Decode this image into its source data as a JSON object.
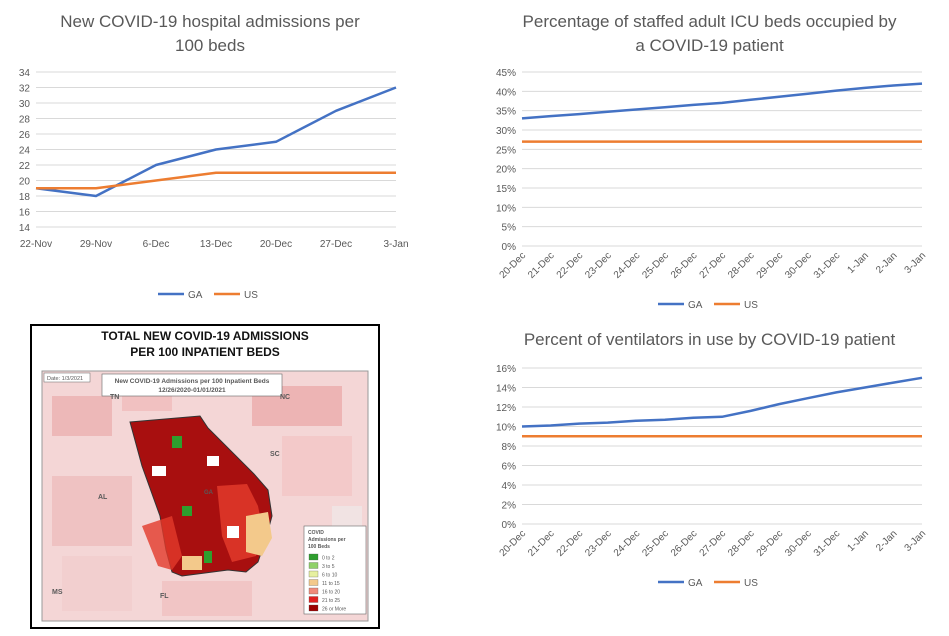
{
  "chart_data": [
    {
      "id": "admissions",
      "type": "line",
      "title_lines": [
        "New COVID-19 hospital admissions per",
        "100 beds"
      ],
      "categories": [
        "22-Nov",
        "29-Nov",
        "6-Dec",
        "13-Dec",
        "20-Dec",
        "27-Dec",
        "3-Jan"
      ],
      "series": [
        {
          "name": "GA",
          "color": "#4472C4",
          "values": [
            19,
            18,
            22,
            24,
            25,
            29,
            32
          ]
        },
        {
          "name": "US",
          "color": "#ED7D31",
          "values": [
            19,
            19,
            20,
            21,
            21,
            21,
            21
          ]
        }
      ],
      "yticks": [
        "14",
        "16",
        "18",
        "20",
        "22",
        "24",
        "26",
        "28",
        "30",
        "32",
        "34"
      ],
      "ylim": [
        14,
        34
      ],
      "grid": true,
      "legend": "bottom"
    },
    {
      "id": "icu",
      "type": "line",
      "title_lines": [
        "Percentage of staffed adult ICU beds occupied by",
        "a COVID-19 patient"
      ],
      "categories": [
        "20-Dec",
        "21-Dec",
        "22-Dec",
        "23-Dec",
        "24-Dec",
        "25-Dec",
        "26-Dec",
        "27-Dec",
        "28-Dec",
        "29-Dec",
        "30-Dec",
        "31-Dec",
        "1-Jan",
        "2-Jan",
        "3-Jan"
      ],
      "series": [
        {
          "name": "GA",
          "color": "#4472C4",
          "values": [
            33,
            33.6,
            34.1,
            34.7,
            35.3,
            35.9,
            36.5,
            37,
            37.8,
            38.6,
            39.4,
            40.2,
            40.9,
            41.5,
            42
          ]
        },
        {
          "name": "US",
          "color": "#ED7D31",
          "values": [
            27,
            27,
            27,
            27,
            27,
            27,
            27,
            27,
            27,
            27,
            27,
            27,
            27,
            27,
            27
          ]
        }
      ],
      "yticks": [
        "0%",
        "5%",
        "10%",
        "15%",
        "20%",
        "25%",
        "30%",
        "35%",
        "40%",
        "45%"
      ],
      "ylim": [
        0,
        45
      ],
      "grid": true,
      "legend": "bottom"
    },
    {
      "id": "ventilators",
      "type": "line",
      "title_lines": [
        "Percent of ventilators in use by COVID-19 patient"
      ],
      "categories": [
        "20-Dec",
        "21-Dec",
        "22-Dec",
        "23-Dec",
        "24-Dec",
        "25-Dec",
        "26-Dec",
        "27-Dec",
        "28-Dec",
        "29-Dec",
        "30-Dec",
        "31-Dec",
        "1-Jan",
        "2-Jan",
        "3-Jan"
      ],
      "series": [
        {
          "name": "GA",
          "color": "#4472C4",
          "values": [
            10,
            10.1,
            10.3,
            10.4,
            10.6,
            10.7,
            10.9,
            11,
            11.6,
            12.3,
            12.9,
            13.5,
            14,
            14.5,
            15
          ]
        },
        {
          "name": "US",
          "color": "#ED7D31",
          "values": [
            9,
            9,
            9,
            9,
            9,
            9,
            9,
            9,
            9,
            9,
            9,
            9,
            9,
            9,
            9
          ]
        }
      ],
      "yticks": [
        "0%",
        "2%",
        "4%",
        "6%",
        "8%",
        "10%",
        "12%",
        "14%",
        "16%"
      ],
      "ylim": [
        0,
        16
      ],
      "grid": true,
      "legend": "bottom"
    }
  ],
  "map": {
    "title_lines": [
      "TOTAL NEW COVID-19 ADMISSIONS",
      "PER 100 INPATIENT BEDS"
    ],
    "inner_title_lines": [
      "New COVID-19 Admissions per 100 Inpatient Beds",
      "12/26/2020-01/01/2021"
    ],
    "date_label": "Date: 1/3/2021",
    "state_labels": [
      "TN",
      "NC",
      "SC",
      "AL",
      "GA",
      "MS",
      "FL"
    ],
    "legend_title": [
      "COVID",
      "Admissions per",
      "100 Beds"
    ],
    "legend_items": [
      {
        "label": "0 to 2",
        "color": "#2e9e2e"
      },
      {
        "label": "3 to 5",
        "color": "#8fd16a"
      },
      {
        "label": "6 to 10",
        "color": "#e6f0a0"
      },
      {
        "label": "11 to 15",
        "color": "#f3c98b"
      },
      {
        "label": "16 to 20",
        "color": "#f08a7a"
      },
      {
        "label": "21 to 25",
        "color": "#e02020"
      },
      {
        "label": "26 or More",
        "color": "#9c0000"
      }
    ]
  }
}
